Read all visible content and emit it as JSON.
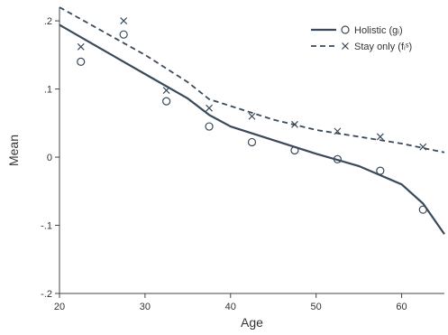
{
  "chart_data": {
    "type": "line",
    "xlabel": "Age",
    "ylabel": "Mean",
    "xlim": [
      20,
      65
    ],
    "ylim": [
      -0.2,
      0.22
    ],
    "x_ticks": [
      20,
      30,
      40,
      50,
      60
    ],
    "x_tick_labels": [
      "20",
      "30",
      "40",
      "50",
      "60"
    ],
    "y_ticks": [
      -0.2,
      -0.1,
      0,
      0.1,
      0.2
    ],
    "y_tick_labels": [
      "-.2",
      "-.1",
      "0",
      ".1",
      ".2"
    ],
    "legend_position": "top-right",
    "series": [
      {
        "name": "Holistic (gᵢ)",
        "color": "#3a4a5a",
        "dash": "solid",
        "marker": "circle",
        "line": {
          "x": [
            20,
            25,
            30,
            35,
            37.5,
            40,
            45,
            50,
            55,
            60,
            62.5,
            65
          ],
          "y": [
            0.194,
            0.158,
            0.122,
            0.086,
            0.062,
            0.045,
            0.025,
            0.005,
            -0.013,
            -0.04,
            -0.068,
            -0.113
          ]
        },
        "points": {
          "x": [
            22.5,
            27.5,
            32.5,
            37.5,
            42.5,
            47.5,
            52.5,
            57.5,
            62.5
          ],
          "y": [
            0.14,
            0.18,
            0.082,
            0.045,
            0.022,
            0.01,
            -0.003,
            -0.02,
            -0.077
          ]
        }
      },
      {
        "name": "Stay only (fᵢˢ)",
        "color": "#3a4a5a",
        "dash": "dashed",
        "marker": "x",
        "line": {
          "x": [
            20,
            25,
            30,
            35,
            37.5,
            40,
            45,
            50,
            55,
            60,
            65
          ],
          "y": [
            0.22,
            0.185,
            0.15,
            0.11,
            0.085,
            0.075,
            0.055,
            0.04,
            0.03,
            0.02,
            0.007
          ]
        },
        "points": {
          "x": [
            22.5,
            27.5,
            32.5,
            37.5,
            42.5,
            47.5,
            52.5,
            57.5,
            62.5
          ],
          "y": [
            0.162,
            0.2,
            0.098,
            0.072,
            0.06,
            0.048,
            0.038,
            0.03,
            0.015
          ]
        }
      }
    ]
  }
}
